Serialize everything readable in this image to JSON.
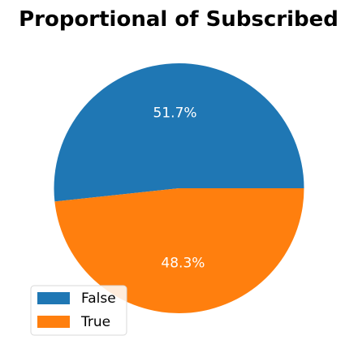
{
  "chart_data": {
    "type": "pie",
    "title": "Proportional of Subscribed",
    "categories": [
      "False",
      "True"
    ],
    "values": [
      51.7,
      48.3
    ],
    "labels": [
      "51.7%",
      "48.3%"
    ],
    "colors": [
      "#1f77b4",
      "#ff7f0e"
    ],
    "start_angle_deg": 0,
    "direction": "counterclockwise",
    "legend": {
      "placement": "lower-left",
      "entries": [
        "False",
        "True"
      ]
    }
  }
}
